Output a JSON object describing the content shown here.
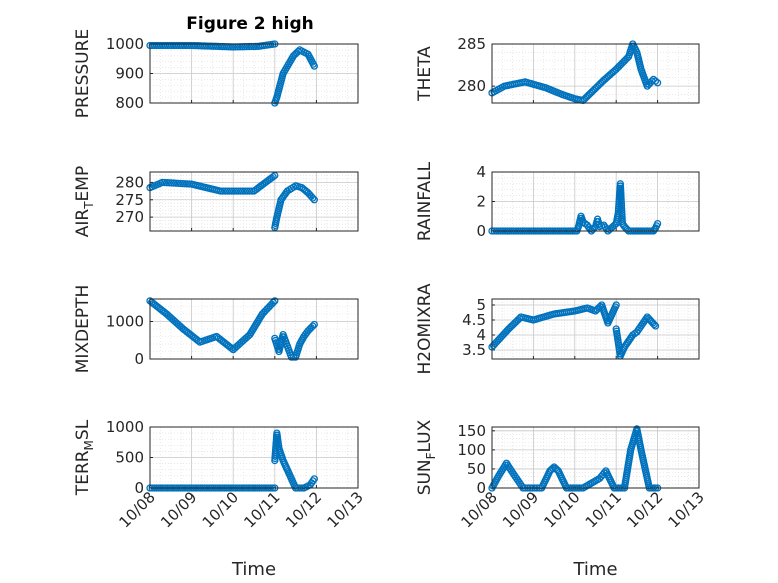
{
  "chart_data": {
    "type": "scatter",
    "title": "Figure 2 high",
    "marker_color": "#0072BD",
    "xlabel": "Time",
    "x_ticks": [
      "10/08",
      "10/09",
      "10/10",
      "10/11",
      "10/12",
      "10/13"
    ],
    "xlim": [
      0,
      5
    ],
    "x_unit": "days since 10/08 00:00",
    "panels": [
      {
        "ylabel": "PRESSURE",
        "ylim": [
          800,
          1000
        ],
        "yticks": [
          800,
          900,
          1000
        ],
        "segments": [
          {
            "x": [
              0,
              1.0,
              2.0,
              2.6,
              3.0
            ],
            "y": [
              995,
              995,
              990,
              992,
              1000
            ]
          },
          {
            "x": [
              3.0,
              3.05,
              3.2,
              3.45,
              3.6,
              3.8,
              3.95
            ],
            "y": [
              800,
              820,
              900,
              960,
              980,
              965,
              925
            ]
          }
        ]
      },
      {
        "ylabel": "THETA",
        "ylim": [
          278,
          285
        ],
        "yticks": [
          280,
          285
        ],
        "segments": [
          {
            "x": [
              0,
              0.3,
              0.8,
              1.3,
              1.7,
              2.0,
              2.2,
              2.45,
              2.7,
              3.0,
              3.3,
              3.4,
              3.5,
              3.6,
              3.75,
              3.9,
              4.0
            ],
            "y": [
              279.2,
              280.0,
              280.5,
              279.8,
              279.0,
              278.5,
              278.3,
              279.5,
              280.7,
              282.0,
              283.5,
              285.0,
              284.0,
              282.0,
              280.0,
              280.8,
              280.4
            ]
          }
        ]
      },
      {
        "ylabel": "AIR_TEMP",
        "ylabel_display": [
          "AIR",
          "T",
          "EMP"
        ],
        "ylim": [
          266,
          283
        ],
        "yticks": [
          270,
          275,
          280
        ],
        "segments": [
          {
            "x": [
              0,
              0.3,
              1.0,
              1.7,
              2.5,
              3.0
            ],
            "y": [
              278.5,
              280.0,
              279.5,
              277.5,
              277.5,
              282.0
            ]
          },
          {
            "x": [
              3.0,
              3.05,
              3.15,
              3.3,
              3.5,
              3.65,
              3.8,
              3.95
            ],
            "y": [
              267.0,
              270.0,
              275.0,
              277.5,
              279.0,
              278.5,
              277.0,
              275.0
            ]
          }
        ]
      },
      {
        "ylabel": "RAINFALL",
        "ylim": [
          0,
          4
        ],
        "yticks": [
          0,
          2,
          4
        ],
        "segments": [
          {
            "x": [
              0,
              2.05,
              2.1,
              2.15,
              2.2,
              2.3,
              2.4,
              2.5,
              2.55,
              2.6,
              2.7,
              2.8,
              3.0,
              3.05,
              3.1,
              3.15,
              3.2,
              3.3,
              3.5,
              3.9,
              3.95,
              4.0
            ],
            "y": [
              0,
              0,
              0.4,
              1.0,
              0.6,
              0.4,
              0,
              0.3,
              0.8,
              0.3,
              0.4,
              0,
              0.5,
              1.2,
              3.2,
              0.5,
              0.3,
              0,
              0,
              0,
              0.2,
              0.5
            ]
          }
        ]
      },
      {
        "ylabel": "MIXDEPTH",
        "ylim": [
          0,
          1600
        ],
        "yticks": [
          0,
          1000
        ],
        "segments": [
          {
            "x": [
              0,
              0.4,
              0.8,
              1.2,
              1.6,
              2.0,
              2.4,
              2.7,
              3.0
            ],
            "y": [
              1550,
              1200,
              800,
              450,
              600,
              250,
              650,
              1200,
              1550
            ]
          },
          {
            "x": [
              3.0,
              3.1,
              3.2,
              3.3,
              3.4,
              3.5,
              3.6,
              3.7,
              3.8,
              3.95
            ],
            "y": [
              550,
              200,
              650,
              350,
              50,
              50,
              400,
              600,
              750,
              920
            ]
          }
        ]
      },
      {
        "ylabel": "H2OMIXRA",
        "ylim": [
          3.2,
          5.2
        ],
        "yticks": [
          3.5,
          4,
          4.5,
          5
        ],
        "segments": [
          {
            "x": [
              0,
              0.4,
              0.7,
              1.0,
              1.5,
              2.0,
              2.3,
              2.5,
              2.65,
              2.8,
              3.0
            ],
            "y": [
              3.6,
              4.2,
              4.6,
              4.5,
              4.7,
              4.8,
              4.9,
              4.8,
              5.0,
              4.4,
              5.0
            ]
          },
          {
            "x": [
              3.0,
              3.1,
              3.2,
              3.4,
              3.5,
              3.6,
              3.75,
              3.95
            ],
            "y": [
              4.2,
              3.3,
              3.6,
              4.0,
              4.1,
              4.3,
              4.6,
              4.3
            ]
          }
        ]
      },
      {
        "ylabel": "TERR_MSL",
        "ylabel_display": [
          "TERR",
          "M",
          "SL"
        ],
        "ylim": [
          0,
          1000
        ],
        "yticks": [
          0,
          500,
          1000
        ],
        "segments": [
          {
            "x": [
              0,
              3.0
            ],
            "y": [
              0,
              0
            ]
          },
          {
            "x": [
              3.0,
              3.05,
              3.1,
              3.2,
              3.3,
              3.5,
              3.7,
              3.85,
              3.95
            ],
            "y": [
              450,
              900,
              650,
              450,
              300,
              0,
              0,
              50,
              150
            ]
          }
        ]
      },
      {
        "ylabel": "SUN_FLUX",
        "ylabel_display": [
          "SUN",
          "F",
          "LUX"
        ],
        "ylim": [
          0,
          160
        ],
        "yticks": [
          0,
          50,
          100,
          150
        ],
        "segments": [
          {
            "x": [
              0,
              0.15,
              0.35,
              0.5,
              0.75,
              1.2,
              1.4,
              1.5,
              1.6,
              1.8,
              2.2,
              2.6,
              2.75,
              2.95,
              3.2,
              3.35,
              3.5,
              3.6,
              3.8,
              4.0
            ],
            "y": [
              0,
              30,
              65,
              40,
              0,
              0,
              45,
              55,
              45,
              0,
              0,
              25,
              45,
              0,
              0,
              100,
              155,
              100,
              0,
              0
            ]
          }
        ]
      }
    ]
  }
}
